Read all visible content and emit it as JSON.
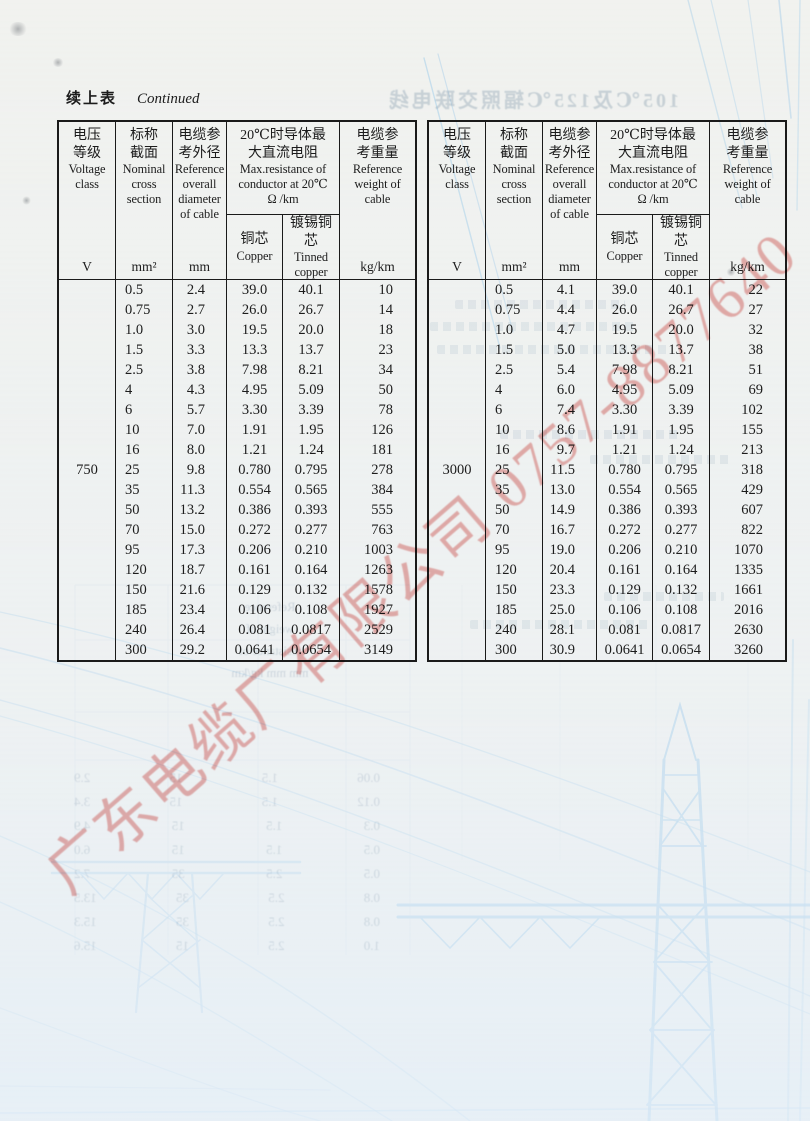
{
  "page": {
    "continued_zh": "续上表",
    "continued_en": "Continued"
  },
  "table_header": {
    "voltage_zh": "电压\n等级",
    "voltage_en": "Voltage\nclass",
    "voltage_unit": "V",
    "cross_zh": "标称\n截面",
    "cross_en": "Nominal\ncross\nsection",
    "cross_unit": "mm²",
    "diameter_zh": "电缆参\n考外径",
    "diameter_en": "Reference\noverall\ndiameter\nof cable",
    "diameter_unit": "mm",
    "resistance_zh": "20℃时导体最\n大直流电阻",
    "resistance_en": "Max.resistance of\nconductor at 20℃",
    "resistance_unit": "Ω /km",
    "copper_zh": "铜芯",
    "copper_en": "Copper",
    "tinned_zh": "镀锡铜芯",
    "tinned_en": "Tinned\ncopper",
    "weight_zh": "电缆参\n考重量",
    "weight_en": "Reference\nweight of\ncable",
    "weight_unit": "kg/km"
  },
  "tables": [
    {
      "voltage_class": "750",
      "rows": [
        [
          "0.5",
          "2.4",
          "39.0",
          "40.1",
          "10"
        ],
        [
          "0.75",
          "2.7",
          "26.0",
          "26.7",
          "14"
        ],
        [
          "1.0",
          "3.0",
          "19.5",
          "20.0",
          "18"
        ],
        [
          "1.5",
          "3.3",
          "13.3",
          "13.7",
          "23"
        ],
        [
          "2.5",
          "3.8",
          "7.98",
          "8.21",
          "34"
        ],
        [
          "4",
          "4.3",
          "4.95",
          "5.09",
          "50"
        ],
        [
          "6",
          "5.7",
          "3.30",
          "3.39",
          "78"
        ],
        [
          "10",
          "7.0",
          "1.91",
          "1.95",
          "126"
        ],
        [
          "16",
          "8.0",
          "1.21",
          "1.24",
          "181"
        ],
        [
          "25",
          "9.8",
          "0.780",
          "0.795",
          "278"
        ],
        [
          "35",
          "11.3",
          "0.554",
          "0.565",
          "384"
        ],
        [
          "50",
          "13.2",
          "0.386",
          "0.393",
          "555"
        ],
        [
          "70",
          "15.0",
          "0.272",
          "0.277",
          "763"
        ],
        [
          "95",
          "17.3",
          "0.206",
          "0.210",
          "1003"
        ],
        [
          "120",
          "18.7",
          "0.161",
          "0.164",
          "1263"
        ],
        [
          "150",
          "21.6",
          "0.129",
          "0.132",
          "1578"
        ],
        [
          "185",
          "23.4",
          "0.106",
          "0.108",
          "1927"
        ],
        [
          "240",
          "26.4",
          "0.081",
          "0.0817",
          "2529"
        ],
        [
          "300",
          "29.2",
          "0.0641",
          "0.0654",
          "3149"
        ]
      ]
    },
    {
      "voltage_class": "3000",
      "rows": [
        [
          "0.5",
          "4.1",
          "39.0",
          "40.1",
          "22"
        ],
        [
          "0.75",
          "4.4",
          "26.0",
          "26.7",
          "27"
        ],
        [
          "1.0",
          "4.7",
          "19.5",
          "20.0",
          "32"
        ],
        [
          "1.5",
          "5.0",
          "13.3",
          "13.7",
          "38"
        ],
        [
          "2.5",
          "5.4",
          "7.98",
          "8.21",
          "51"
        ],
        [
          "4",
          "6.0",
          "4.95",
          "5.09",
          "69"
        ],
        [
          "6",
          "7.4",
          "3.30",
          "3.39",
          "102"
        ],
        [
          "10",
          "8.6",
          "1.91",
          "1.95",
          "155"
        ],
        [
          "16",
          "9.7",
          "1.21",
          "1.24",
          "213"
        ],
        [
          "25",
          "11.5",
          "0.780",
          "0.795",
          "318"
        ],
        [
          "35",
          "13.0",
          "0.554",
          "0.565",
          "429"
        ],
        [
          "50",
          "14.9",
          "0.386",
          "0.393",
          "607"
        ],
        [
          "70",
          "16.7",
          "0.272",
          "0.277",
          "822"
        ],
        [
          "95",
          "19.0",
          "0.206",
          "0.210",
          "1070"
        ],
        [
          "120",
          "20.4",
          "0.161",
          "0.164",
          "1335"
        ],
        [
          "150",
          "23.3",
          "0.129",
          "0.132",
          "1661"
        ],
        [
          "185",
          "25.0",
          "0.106",
          "0.108",
          "2016"
        ],
        [
          "240",
          "28.1",
          "0.081",
          "0.0817",
          "2630"
        ],
        [
          "300",
          "30.9",
          "0.0641",
          "0.0654",
          "3260"
        ]
      ]
    }
  ],
  "watermark": {
    "text": "广东电缆厂有限公司 0757-8877640",
    "color": "#dd6a66"
  },
  "bleedthrough": {
    "top_title": "105℃及125℃辐照交联电线",
    "left_fragment_lines": [
      "Reference",
      "weight of",
      "resistance of",
      "mm    mm    kg/km"
    ],
    "left_number_rows": [
      [
        "0.06",
        "1.5",
        "15",
        "2.9"
      ],
      [
        "0.12",
        "1.5",
        "15",
        "3.4"
      ],
      [
        "0.3",
        "1.5",
        "15",
        "4.9"
      ],
      [
        "0.5",
        "1.5",
        "15",
        "6.0"
      ],
      [
        "0.5",
        "2.5",
        "35",
        "7.2"
      ],
      [
        "0.8",
        "2.5",
        "35",
        "13.5"
      ],
      [
        "0.8",
        "2.5",
        "35",
        "15.3"
      ],
      [
        "1.0",
        "2.5",
        "15",
        "15.6"
      ]
    ]
  }
}
